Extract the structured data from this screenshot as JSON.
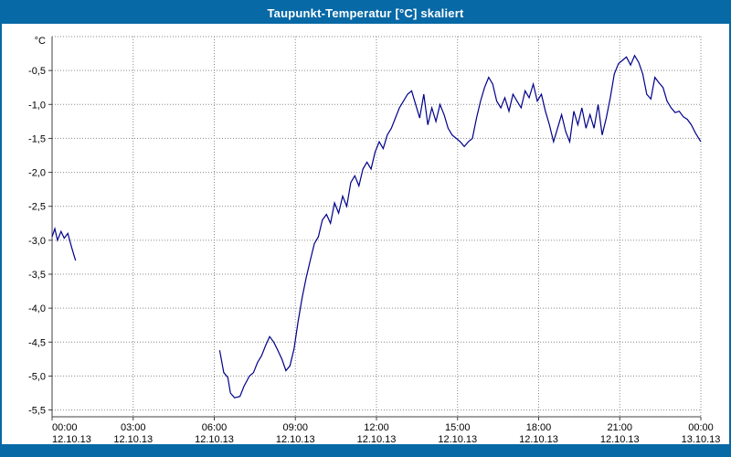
{
  "window": {
    "title": "Taupunkt-Temperatur [°C] skaliert",
    "title_bar_color": "#0769a6",
    "border_color": "#0769a6"
  },
  "chart_data": {
    "type": "line",
    "title": "Taupunkt-Temperatur [°C] skaliert",
    "unit_label": "°C",
    "line_color": "#00008b",
    "grid": true,
    "grid_color": "#8a8a8a",
    "axis_color": "#404040",
    "legend_position": "none",
    "x_axis": {
      "range_hours": [
        0,
        24
      ],
      "tick_hours": [
        0,
        3,
        6,
        9,
        12,
        15,
        18,
        21,
        24
      ],
      "tick_labels": [
        "00:00",
        "03:00",
        "06:00",
        "09:00",
        "12:00",
        "15:00",
        "18:00",
        "21:00",
        "00:00"
      ],
      "date_labels": [
        "12.10.13",
        "12.10.13",
        "12.10.13",
        "12.10.13",
        "12.10.13",
        "12.10.13",
        "12.10.13",
        "12.10.13",
        "13.10.13"
      ]
    },
    "y_axis": {
      "range": [
        -5.6,
        0
      ],
      "ticks": [
        -0.5,
        -1.0,
        -1.5,
        -2.0,
        -2.5,
        -3.0,
        -3.5,
        -4.0,
        -4.5,
        -5.0,
        -5.5
      ],
      "tick_labels": [
        "-0,5",
        "-1,0",
        "-1,5",
        "-2,0",
        "-2,5",
        "-3,0",
        "-3,5",
        "-4,0",
        "-4,5",
        "-5,0",
        "-5,5"
      ]
    },
    "series": [
      {
        "name": "Taupunkt-Temperatur",
        "segments": [
          [
            [
              0,
              -2.95
            ],
            [
              0.1,
              -2.83
            ],
            [
              0.2,
              -3.0
            ],
            [
              0.33,
              -2.87
            ],
            [
              0.45,
              -2.97
            ],
            [
              0.58,
              -2.9
            ],
            [
              0.72,
              -3.1
            ],
            [
              0.87,
              -3.3
            ]
          ],
          [
            [
              6.2,
              -4.62
            ],
            [
              6.35,
              -4.95
            ],
            [
              6.5,
              -5.02
            ],
            [
              6.6,
              -5.25
            ],
            [
              6.75,
              -5.32
            ],
            [
              6.95,
              -5.3
            ],
            [
              7.1,
              -5.15
            ],
            [
              7.3,
              -5.0
            ],
            [
              7.45,
              -4.95
            ],
            [
              7.6,
              -4.8
            ],
            [
              7.75,
              -4.7
            ],
            [
              7.9,
              -4.55
            ],
            [
              8.05,
              -4.42
            ],
            [
              8.2,
              -4.5
            ],
            [
              8.35,
              -4.62
            ],
            [
              8.5,
              -4.75
            ],
            [
              8.65,
              -4.92
            ],
            [
              8.8,
              -4.85
            ],
            [
              8.95,
              -4.6
            ],
            [
              9.1,
              -4.2
            ],
            [
              9.25,
              -3.85
            ],
            [
              9.4,
              -3.55
            ],
            [
              9.55,
              -3.3
            ],
            [
              9.7,
              -3.05
            ],
            [
              9.85,
              -2.95
            ],
            [
              10.0,
              -2.7
            ],
            [
              10.15,
              -2.62
            ],
            [
              10.3,
              -2.75
            ],
            [
              10.45,
              -2.45
            ],
            [
              10.6,
              -2.6
            ],
            [
              10.75,
              -2.35
            ],
            [
              10.9,
              -2.5
            ],
            [
              11.05,
              -2.15
            ],
            [
              11.2,
              -2.05
            ],
            [
              11.35,
              -2.2
            ],
            [
              11.5,
              -1.95
            ],
            [
              11.65,
              -1.85
            ],
            [
              11.8,
              -1.95
            ],
            [
              11.95,
              -1.7
            ],
            [
              12.1,
              -1.55
            ],
            [
              12.25,
              -1.65
            ],
            [
              12.4,
              -1.45
            ],
            [
              12.55,
              -1.35
            ],
            [
              12.7,
              -1.2
            ],
            [
              12.85,
              -1.05
            ],
            [
              13.0,
              -0.95
            ],
            [
              13.15,
              -0.85
            ],
            [
              13.3,
              -0.8
            ],
            [
              13.45,
              -1.0
            ],
            [
              13.6,
              -1.2
            ],
            [
              13.75,
              -0.85
            ],
            [
              13.9,
              -1.3
            ],
            [
              14.05,
              -1.05
            ],
            [
              14.2,
              -1.25
            ],
            [
              14.35,
              -1.0
            ],
            [
              14.5,
              -1.15
            ],
            [
              14.65,
              -1.35
            ],
            [
              14.8,
              -1.45
            ],
            [
              14.95,
              -1.5
            ],
            [
              15.1,
              -1.55
            ],
            [
              15.25,
              -1.62
            ],
            [
              15.4,
              -1.55
            ],
            [
              15.55,
              -1.5
            ],
            [
              15.7,
              -1.2
            ],
            [
              15.85,
              -0.95
            ],
            [
              16.0,
              -0.75
            ],
            [
              16.15,
              -0.6
            ],
            [
              16.3,
              -0.7
            ],
            [
              16.45,
              -0.95
            ],
            [
              16.6,
              -1.05
            ],
            [
              16.75,
              -0.9
            ],
            [
              16.9,
              -1.1
            ],
            [
              17.05,
              -0.85
            ],
            [
              17.2,
              -0.95
            ],
            [
              17.35,
              -1.05
            ],
            [
              17.5,
              -0.8
            ],
            [
              17.65,
              -0.9
            ],
            [
              17.8,
              -0.7
            ],
            [
              17.95,
              -0.95
            ],
            [
              18.1,
              -0.85
            ],
            [
              18.25,
              -1.1
            ],
            [
              18.4,
              -1.3
            ],
            [
              18.55,
              -1.55
            ],
            [
              18.7,
              -1.35
            ],
            [
              18.85,
              -1.15
            ],
            [
              19.0,
              -1.4
            ],
            [
              19.15,
              -1.55
            ],
            [
              19.3,
              -1.1
            ],
            [
              19.45,
              -1.3
            ],
            [
              19.6,
              -1.05
            ],
            [
              19.75,
              -1.35
            ],
            [
              19.9,
              -1.15
            ],
            [
              20.05,
              -1.35
            ],
            [
              20.2,
              -1.0
            ],
            [
              20.35,
              -1.45
            ],
            [
              20.5,
              -1.2
            ],
            [
              20.65,
              -0.9
            ],
            [
              20.8,
              -0.55
            ],
            [
              20.95,
              -0.4
            ],
            [
              21.1,
              -0.35
            ],
            [
              21.25,
              -0.3
            ],
            [
              21.4,
              -0.42
            ],
            [
              21.55,
              -0.28
            ],
            [
              21.7,
              -0.38
            ],
            [
              21.85,
              -0.55
            ],
            [
              22.0,
              -0.85
            ],
            [
              22.15,
              -0.92
            ],
            [
              22.3,
              -0.6
            ],
            [
              22.45,
              -0.68
            ],
            [
              22.6,
              -0.75
            ],
            [
              22.75,
              -0.95
            ],
            [
              22.9,
              -1.05
            ],
            [
              23.05,
              -1.12
            ],
            [
              23.2,
              -1.1
            ],
            [
              23.35,
              -1.18
            ],
            [
              23.5,
              -1.22
            ],
            [
              23.65,
              -1.3
            ],
            [
              23.8,
              -1.42
            ],
            [
              24.0,
              -1.55
            ]
          ]
        ]
      }
    ]
  }
}
